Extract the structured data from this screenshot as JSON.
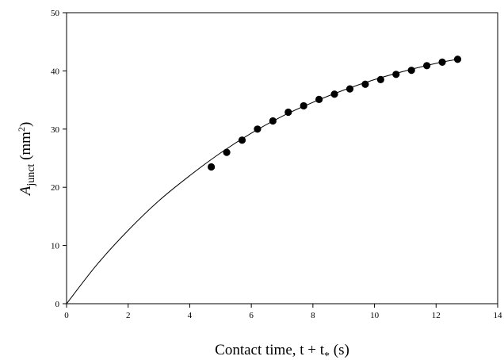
{
  "chart_data": {
    "type": "scatter",
    "xlabel": {
      "main": "Contact time,  t + t",
      "subscript": "*",
      "unit": " (s)"
    },
    "ylabel": {
      "symbol": "A",
      "subscript": "junct",
      "unit_open": " (mm",
      "superscript": "2",
      "unit_close": ")"
    },
    "xlim": [
      0,
      14
    ],
    "ylim": [
      0,
      50
    ],
    "xticks": [
      0,
      2,
      4,
      6,
      8,
      10,
      12,
      14
    ],
    "yticks": [
      0,
      10,
      20,
      30,
      40,
      50
    ],
    "grid": false,
    "series": [
      {
        "kind": "points",
        "color": "#000000",
        "x": [
          4.7,
          5.2,
          5.7,
          6.2,
          6.7,
          7.2,
          7.7,
          8.2,
          8.7,
          9.2,
          9.7,
          10.2,
          10.7,
          11.2,
          11.7,
          12.2,
          12.7
        ],
        "y": [
          23.5,
          26.0,
          28.1,
          30.0,
          31.4,
          32.9,
          34.0,
          35.1,
          36.0,
          36.9,
          37.7,
          38.5,
          39.4,
          40.1,
          40.9,
          41.5,
          42.0
        ]
      },
      {
        "kind": "fit-line",
        "color": "#000000",
        "x": [
          0,
          1,
          2,
          3,
          4,
          5,
          6,
          7,
          8,
          9,
          10,
          11,
          12,
          12.7
        ],
        "y": [
          0,
          6.8,
          12.6,
          17.7,
          22.0,
          25.9,
          29.3,
          32.2,
          34.6,
          36.7,
          38.5,
          40.0,
          41.3,
          42.0
        ]
      }
    ]
  }
}
